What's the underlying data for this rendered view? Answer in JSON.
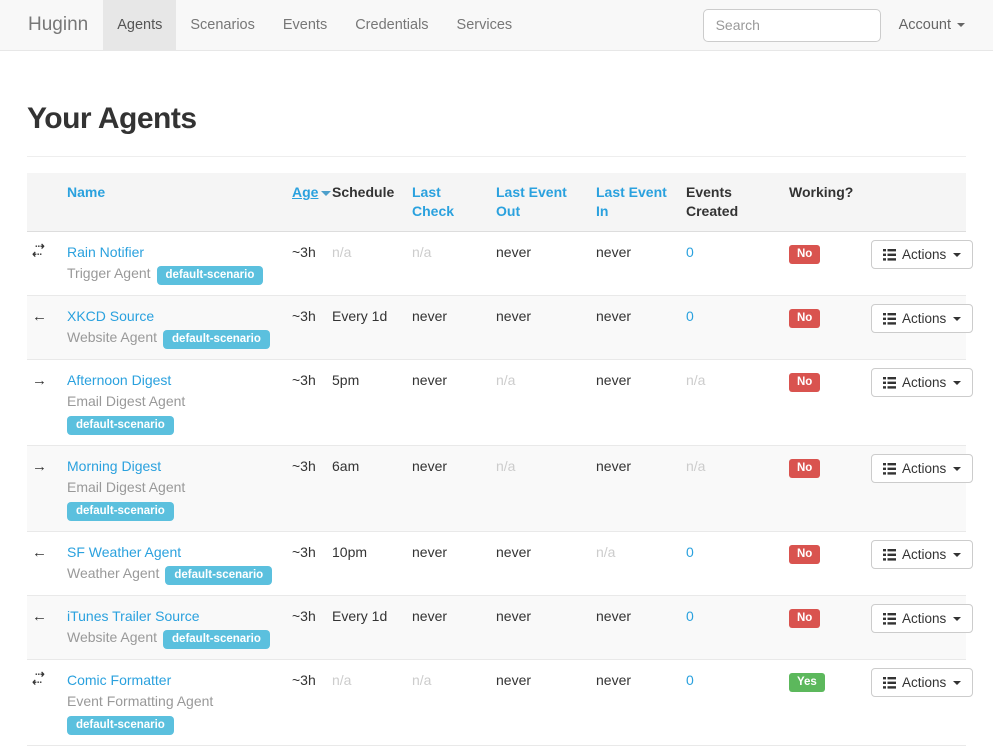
{
  "navbar": {
    "brand": "Huginn",
    "items": [
      {
        "label": "Agents",
        "active": true
      },
      {
        "label": "Scenarios",
        "active": false
      },
      {
        "label": "Events",
        "active": false
      },
      {
        "label": "Credentials",
        "active": false
      },
      {
        "label": "Services",
        "active": false
      }
    ],
    "search_placeholder": "Search",
    "account_label": "Account"
  },
  "page": {
    "title": "Your Agents"
  },
  "colors": {
    "link": "#2aa1de",
    "badge-info": "#5bc0de",
    "danger": "#d9534f",
    "success": "#5cb85c",
    "muted": "#cccccc",
    "stripe": "#f9f9f9",
    "header-bg": "#f5f5f5"
  },
  "icons": {
    "direction_left": "←",
    "direction_right": "→",
    "direction_both_top": "⇢",
    "direction_both_bottom": "⇠"
  },
  "table": {
    "headers": {
      "name": "Name",
      "age": "Age",
      "schedule": "Schedule",
      "last_check": "Last Check",
      "last_event_out": "Last Event Out",
      "last_event_in": "Last Event In",
      "events_created": "Events Created",
      "working": "Working?"
    },
    "actions_label": "Actions",
    "rows": [
      {
        "direction": "both",
        "name": "Rain Notifier",
        "type": "Trigger Agent",
        "badge": "default-scenario",
        "badge_below": false,
        "age": "~3h",
        "schedule": "n/a",
        "last_check": "n/a",
        "last_event_out": "never",
        "last_event_in": "never",
        "events_created": "0",
        "working": "No"
      },
      {
        "direction": "left",
        "name": "XKCD Source",
        "type": "Website Agent",
        "badge": "default-scenario",
        "badge_below": false,
        "age": "~3h",
        "schedule": "Every 1d",
        "last_check": "never",
        "last_event_out": "never",
        "last_event_in": "never",
        "events_created": "0",
        "working": "No"
      },
      {
        "direction": "right",
        "name": "Afternoon Digest",
        "type": "Email Digest Agent",
        "badge": "default-scenario",
        "badge_below": true,
        "age": "~3h",
        "schedule": "5pm",
        "last_check": "never",
        "last_event_out": "n/a",
        "last_event_in": "never",
        "events_created": "n/a",
        "working": "No"
      },
      {
        "direction": "right",
        "name": "Morning Digest",
        "type": "Email Digest Agent",
        "badge": "default-scenario",
        "badge_below": true,
        "age": "~3h",
        "schedule": "6am",
        "last_check": "never",
        "last_event_out": "n/a",
        "last_event_in": "never",
        "events_created": "n/a",
        "working": "No"
      },
      {
        "direction": "left",
        "name": "SF Weather Agent",
        "type": "Weather Agent",
        "badge": "default-scenario",
        "badge_below": false,
        "age": "~3h",
        "schedule": "10pm",
        "last_check": "never",
        "last_event_out": "never",
        "last_event_in": "n/a",
        "events_created": "0",
        "working": "No"
      },
      {
        "direction": "left",
        "name": "iTunes Trailer Source",
        "type": "Website Agent",
        "badge": "default-scenario",
        "badge_below": false,
        "age": "~3h",
        "schedule": "Every 1d",
        "last_check": "never",
        "last_event_out": "never",
        "last_event_in": "never",
        "events_created": "0",
        "working": "No"
      },
      {
        "direction": "both",
        "name": "Comic Formatter",
        "type": "Event Formatting Agent",
        "badge": "default-scenario",
        "badge_below": true,
        "age": "~3h",
        "schedule": "n/a",
        "last_check": "n/a",
        "last_event_out": "never",
        "last_event_in": "never",
        "events_created": "0",
        "working": "Yes"
      }
    ]
  }
}
